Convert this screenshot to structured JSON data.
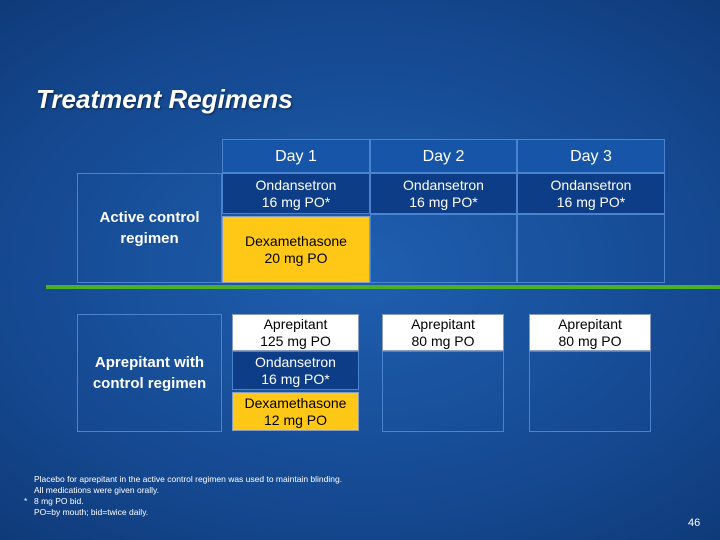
{
  "slide": {
    "title": "Treatment Regimens",
    "page_number": "46"
  },
  "table": {
    "headers": [
      "Day 1",
      "Day 2",
      "Day 3"
    ],
    "active_control": {
      "label": "Active control regimen",
      "day1_ondansetron": [
        "Ondansetron",
        "16 mg PO*"
      ],
      "day1_dexamethasone": [
        "Dexamethasone",
        "20 mg PO"
      ],
      "day2_ondansetron": [
        "Ondansetron",
        "16 mg PO*"
      ],
      "day3_ondansetron": [
        "Ondansetron",
        "16 mg PO*"
      ]
    },
    "aprepitant": {
      "label": "Aprepitant with control regimen",
      "day1_aprepitant": [
        "Aprepitant",
        "125 mg PO"
      ],
      "day1_ondansetron": [
        "Ondansetron",
        "16 mg PO*"
      ],
      "day1_dexamethasone": [
        "Dexamethasone",
        "12 mg PO"
      ],
      "day2_aprepitant": [
        "Aprepitant",
        "80 mg PO"
      ],
      "day3_aprepitant": [
        "Aprepitant",
        "80 mg PO"
      ]
    }
  },
  "footnotes": {
    "line1": "Placebo for aprepitant in the active control regimen was used to maintain blinding.",
    "line2": "All medications were given orally.",
    "star": "*",
    "line3": "8 mg PO bid.",
    "line4": "PO=by mouth; bid=twice daily."
  },
  "colors": {
    "accent_green": "#4caf2a",
    "yellow": "#ffc817",
    "background": "#14478e"
  }
}
